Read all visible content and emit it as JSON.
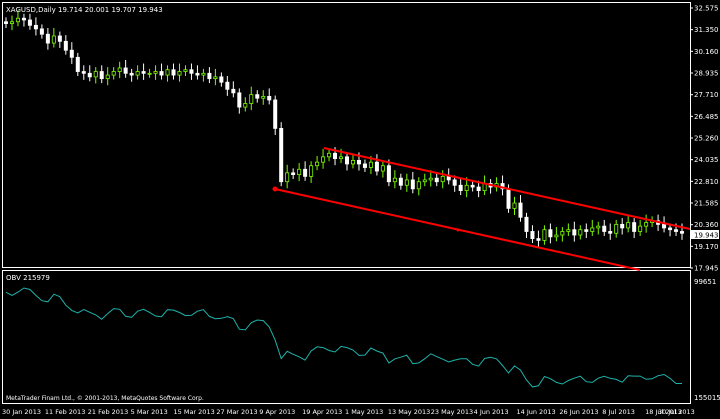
{
  "main_panel": {
    "header": "XAGUSD,Daily  19.714 20.001 19.707 19.943",
    "price_ticks": [
      "32.575",
      "31.350",
      "30.160",
      "28.935",
      "27.710",
      "26.485",
      "25.260",
      "24.035",
      "22.810",
      "21.585",
      "20.360",
      "19.170",
      "17.945"
    ],
    "current_price": "19.943",
    "ylim": [
      17.945,
      32.575
    ]
  },
  "indicator_panel": {
    "header": "OBV 215979",
    "ticks": [
      "99651",
      "155015"
    ]
  },
  "x_axis": {
    "labels": [
      "30 Jan 2013",
      "11 Feb 2013",
      "21 Feb 2013",
      "5 Mar 2013",
      "15 Mar 2013",
      "27 Mar 2013",
      "9 Apr 2013",
      "19 Apr 2013",
      "1 May 2013",
      "13 May 2013",
      "23 May 2013",
      "4 Jun 2013",
      "14 Jun 2013",
      "26 Jun 2013",
      "8 Jul 2013",
      "18 Jul 2013",
      "30 Jul 2013"
    ]
  },
  "copyright": "MetaTrader Finam Ltd., © 2001-2013, MetaQuotes Software Corp.",
  "colors": {
    "background": "#000000",
    "bull_candle": "#7CFC00",
    "bear_candle": "#ffffff",
    "channel_lines": "#ff0000",
    "obv_line": "#20b2aa",
    "grid": "#2a2a2a",
    "axis": "#ffffff"
  },
  "chart_data": {
    "type": "candlestick",
    "symbol": "XAGUSD",
    "timeframe": "Daily",
    "y_axis_range": [
      17.945,
      32.575
    ],
    "close_series": [
      31.7,
      31.8,
      32.0,
      31.9,
      31.6,
      31.4,
      31.1,
      30.6,
      31.0,
      30.7,
      30.2,
      29.8,
      29.0,
      28.9,
      28.7,
      29.0,
      28.6,
      28.8,
      29.0,
      29.2,
      28.9,
      28.8,
      29.0,
      28.9,
      28.9,
      29.0,
      28.8,
      29.1,
      28.8,
      29.0,
      29.1,
      28.9,
      28.8,
      28.9,
      28.6,
      28.7,
      28.4,
      28.0,
      27.8,
      27.0,
      27.2,
      27.7,
      27.5,
      27.6,
      27.4,
      25.8,
      22.8,
      23.3,
      23.2,
      23.5,
      23.1,
      23.7,
      23.9,
      24.2,
      24.4,
      24.1,
      24.2,
      23.8,
      24.0,
      23.8,
      23.6,
      23.9,
      23.4,
      23.7,
      22.8,
      23.0,
      22.6,
      22.9,
      22.4,
      22.8,
      22.9,
      23.0,
      22.8,
      23.1,
      22.9,
      22.6,
      22.3,
      22.6,
      22.5,
      22.3,
      22.7,
      22.5,
      22.7,
      22.4,
      21.3,
      21.6,
      20.8,
      20.0,
      19.6,
      19.5,
      20.1,
      19.7,
      19.8,
      20.0,
      20.1,
      19.8,
      20.1,
      20.0,
      20.2,
      20.3,
      20.0,
      19.9,
      20.4,
      20.2,
      20.5,
      20.0,
      20.3,
      20.5,
      20.6,
      20.4,
      20.2,
      20.1,
      20.0,
      19.9
    ]
  }
}
